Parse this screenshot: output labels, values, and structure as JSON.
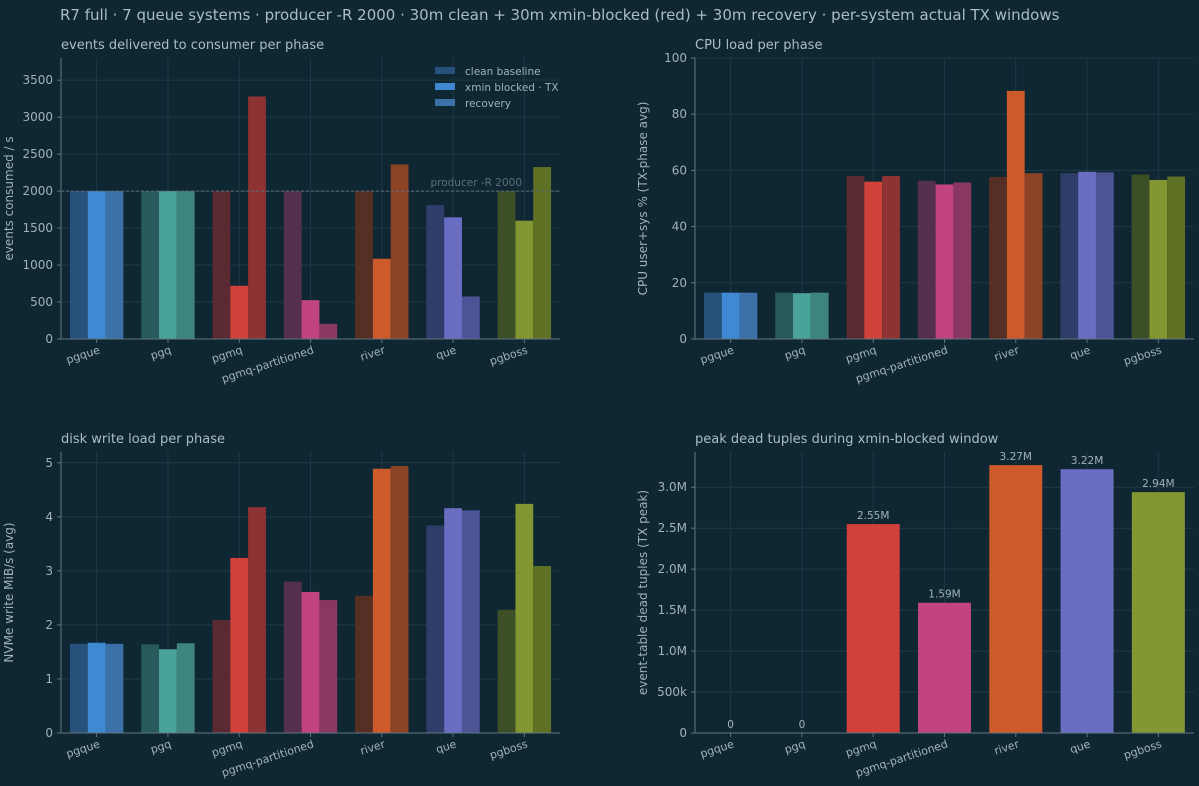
{
  "suptitle": "R7 full · 7 queue systems · producer -R 2000 · 30m clean + 30m xmin-blocked (red) + 30m recovery · per-system actual TX windows",
  "colors": {
    "background": "#0f2733",
    "axis": "#62747f",
    "grid": "#1e3845",
    "text": "#9fb1bc",
    "title": "#a9bcc7",
    "reference": "#5a6e79",
    "systems": {
      "pgque": [
        "#27517a",
        "#3f88d2",
        "#3a71a8"
      ],
      "pgq": [
        "#285a5d",
        "#4aa39b",
        "#3f857f"
      ],
      "pgmq": [
        "#5a2a33",
        "#d0413a",
        "#8e3334"
      ],
      "pgmq-partitioned": [
        "#54304e",
        "#c2447f",
        "#8a3762"
      ],
      "river": [
        "#552f24",
        "#cd5a2a",
        "#8c4224"
      ],
      "que": [
        "#2f3e68",
        "#6a6ec3",
        "#4b5495"
      ],
      "pgboss": [
        "#3c4f26",
        "#829632",
        "#5e7125"
      ]
    }
  },
  "chart_data": [
    {
      "id": "events",
      "type": "bar",
      "title": "events delivered to consumer per phase",
      "xlabel": "",
      "ylabel": "events consumed / s",
      "categories": [
        "pgque",
        "pgq",
        "pgmq",
        "pgmq-partitioned",
        "river",
        "que",
        "pgboss"
      ],
      "series": [
        {
          "name": "clean baseline",
          "values": [
            2000,
            2000,
            2000,
            2000,
            2000,
            1810,
            2000
          ]
        },
        {
          "name": "xmin blocked · TX",
          "values": [
            2000,
            2000,
            720,
            525,
            1085,
            1645,
            1600
          ]
        },
        {
          "name": "recovery",
          "values": [
            2000,
            2000,
            3280,
            205,
            2360,
            575,
            2325
          ]
        }
      ],
      "ylim": [
        0,
        3800
      ],
      "yticks": [
        0,
        500,
        1000,
        1500,
        2000,
        2500,
        3000,
        3500
      ],
      "ytick_labels": [
        "0",
        "500",
        "1000",
        "1500",
        "2000",
        "2500",
        "3000",
        "3500"
      ],
      "reference_line": {
        "value": 2000,
        "label": "producer -R 2000"
      },
      "legend": {
        "position": "top-right",
        "entries": [
          "clean baseline",
          "xmin blocked · TX",
          "recovery"
        ]
      }
    },
    {
      "id": "cpu",
      "type": "bar",
      "title": "CPU load per phase",
      "xlabel": "",
      "ylabel": "CPU user+sys % (TX-phase avg)",
      "categories": [
        "pgque",
        "pgq",
        "pgmq",
        "pgmq-partitioned",
        "river",
        "que",
        "pgboss"
      ],
      "series": [
        {
          "name": "clean baseline",
          "values": [
            16.5,
            16.5,
            58,
            56.3,
            57.7,
            59,
            58.5
          ]
        },
        {
          "name": "xmin blocked · TX",
          "values": [
            16.5,
            16.3,
            56,
            55,
            88.3,
            59.5,
            56.6
          ]
        },
        {
          "name": "recovery",
          "values": [
            16.5,
            16.5,
            58,
            55.7,
            59,
            59.3,
            57.8
          ]
        }
      ],
      "ylim": [
        0,
        100
      ],
      "yticks": [
        0,
        20,
        40,
        60,
        80,
        100
      ],
      "ytick_labels": [
        "0",
        "20",
        "40",
        "60",
        "80",
        "100"
      ]
    },
    {
      "id": "disk",
      "type": "bar",
      "title": "disk write load per phase",
      "xlabel": "",
      "ylabel": "NVMe write MiB/s (avg)",
      "categories": [
        "pgque",
        "pgq",
        "pgmq",
        "pgmq-partitioned",
        "river",
        "que",
        "pgboss"
      ],
      "series": [
        {
          "name": "clean baseline",
          "values": [
            1.65,
            1.64,
            2.09,
            2.8,
            2.54,
            3.84,
            2.28
          ]
        },
        {
          "name": "xmin blocked · TX",
          "values": [
            1.67,
            1.55,
            3.24,
            2.61,
            4.89,
            4.16,
            4.24
          ]
        },
        {
          "name": "recovery",
          "values": [
            1.65,
            1.66,
            4.18,
            2.46,
            4.94,
            4.12,
            3.09
          ]
        }
      ],
      "ylim": [
        0,
        5.2
      ],
      "yticks": [
        0,
        1,
        2,
        3,
        4,
        5
      ],
      "ytick_labels": [
        "0",
        "1",
        "2",
        "3",
        "4",
        "5"
      ]
    },
    {
      "id": "dead",
      "type": "bar",
      "title": "peak dead tuples during xmin-blocked window",
      "xlabel": "",
      "ylabel": "event-table dead tuples (TX peak)",
      "categories": [
        "pgque",
        "pgq",
        "pgmq",
        "pgmq-partitioned",
        "river",
        "que",
        "pgboss"
      ],
      "values": [
        0,
        0,
        2550000,
        1590000,
        3270000,
        3220000,
        2940000
      ],
      "value_labels": [
        "0",
        "0",
        "2.55M",
        "1.59M",
        "3.27M",
        "3.22M",
        "2.94M"
      ],
      "ylim": [
        0,
        3430000
      ],
      "yticks": [
        0,
        500000,
        1000000,
        1500000,
        2000000,
        2500000,
        3000000
      ],
      "ytick_labels": [
        "0",
        "500k",
        "1.0M",
        "1.5M",
        "2.0M",
        "2.5M",
        "3.0M"
      ]
    }
  ]
}
